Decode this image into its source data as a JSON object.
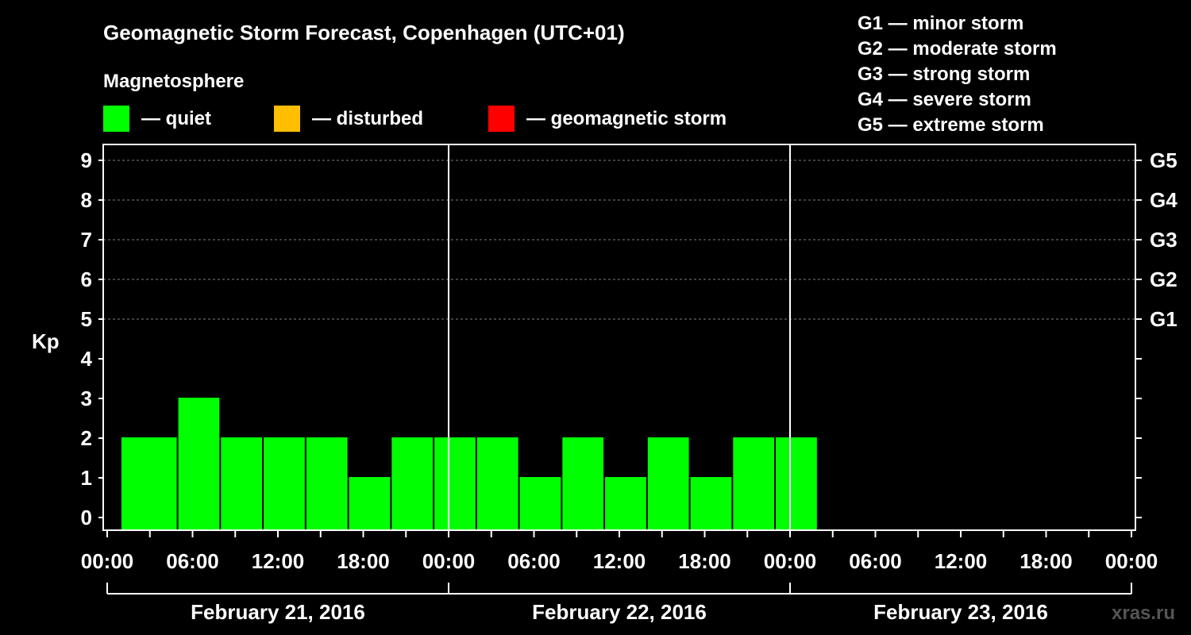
{
  "chart_data": {
    "type": "bar",
    "title": "Geomagnetic Storm Forecast, Copenhagen (UTC+01)",
    "ylabel": "Kp",
    "ylim": [
      0,
      9
    ],
    "yticks": [
      "0",
      "1",
      "2",
      "3",
      "4",
      "5",
      "6",
      "7",
      "8",
      "9"
    ],
    "right_ticks": [
      {
        "kp": 5,
        "label": "G1"
      },
      {
        "kp": 6,
        "label": "G2"
      },
      {
        "kp": 7,
        "label": "G3"
      },
      {
        "kp": 8,
        "label": "G4"
      },
      {
        "kp": 9,
        "label": "G5"
      }
    ],
    "x_hours_start": -1,
    "x_hours_end": 71,
    "x_tick_hours": [
      -1,
      5,
      11,
      17,
      23,
      29,
      35,
      41,
      47,
      53,
      59,
      65,
      71
    ],
    "x_tick_labels": [
      "00:00",
      "06:00",
      "12:00",
      "18:00",
      "00:00",
      "06:00",
      "12:00",
      "18:00",
      "00:00",
      "06:00",
      "12:00",
      "18:00",
      "00:00"
    ],
    "day_separators_hours": [
      23,
      47
    ],
    "dates": [
      "February 21, 2016",
      "February 22, 2016",
      "February 23, 2016"
    ],
    "bars": [
      {
        "start": 0,
        "kp": 2,
        "status": "quiet"
      },
      {
        "start": 1,
        "kp": 2,
        "status": "quiet"
      },
      {
        "start": 4,
        "kp": 3,
        "status": "quiet"
      },
      {
        "start": 7,
        "kp": 2,
        "status": "quiet"
      },
      {
        "start": 10,
        "kp": 2,
        "status": "quiet"
      },
      {
        "start": 13,
        "kp": 2,
        "status": "quiet"
      },
      {
        "start": 16,
        "kp": 1,
        "status": "quiet"
      },
      {
        "start": 19,
        "kp": 2,
        "status": "quiet"
      },
      {
        "start": 22,
        "kp": 2,
        "status": "quiet"
      },
      {
        "start": 25,
        "kp": 2,
        "status": "quiet"
      },
      {
        "start": 28,
        "kp": 1,
        "status": "quiet"
      },
      {
        "start": 31,
        "kp": 2,
        "status": "quiet"
      },
      {
        "start": 34,
        "kp": 1,
        "status": "quiet"
      },
      {
        "start": 37,
        "kp": 2,
        "status": "quiet"
      },
      {
        "start": 40,
        "kp": 1,
        "status": "quiet"
      },
      {
        "start": 43,
        "kp": 2,
        "status": "quiet"
      },
      {
        "start": 46,
        "kp": 2,
        "status": "quiet"
      }
    ],
    "legend": {
      "title": "Magnetosphere",
      "items": [
        {
          "label": "— quiet",
          "color": "#00ff00"
        },
        {
          "label": "— disturbed",
          "color": "#ffbf00"
        },
        {
          "label": "— geomagnetic storm",
          "color": "#ff0000"
        }
      ]
    },
    "storm_scale": [
      "G1 — minor storm",
      "G2 — moderate storm",
      "G3 — strong storm",
      "G4 — severe storm",
      "G5 — extreme storm"
    ],
    "watermark": "xras.ru",
    "colors": {
      "background": "#000000",
      "axis": "#ffffff",
      "grid": "#808080",
      "quiet": "#00ff00",
      "disturbed": "#ffbf00",
      "storm": "#ff0000",
      "watermark": "#555555"
    }
  }
}
